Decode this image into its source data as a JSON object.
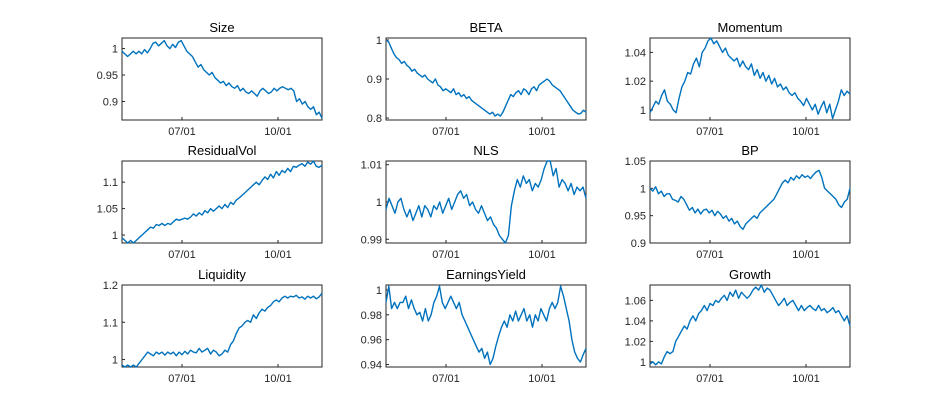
{
  "figure": {
    "line_color": "#0072BD",
    "axis_color": "#262626"
  },
  "chart_data": [
    {
      "type": "line",
      "title": "Size",
      "xlabel": "",
      "ylabel": "",
      "x_tick_labels": [
        "07/01",
        "10/01"
      ],
      "y_ticks": [
        0.9,
        0.95,
        1
      ],
      "y_tick_labels": [
        "0.9",
        "0.95",
        "1"
      ],
      "ylim": [
        0.865,
        1.02
      ],
      "grid": false,
      "series": [
        {
          "values": [
            0.995,
            0.99,
            0.985,
            0.99,
            0.995,
            0.99,
            0.995,
            0.99,
            0.998,
            0.992,
            1.0,
            1.01,
            1.012,
            1.005,
            1.01,
            1.015,
            1.005,
            1.0,
            1.008,
            1.002,
            1.012,
            1.015,
            1.005,
            0.995,
            0.99,
            0.985,
            0.975,
            0.965,
            0.97,
            0.96,
            0.955,
            0.95,
            0.955,
            0.945,
            0.94,
            0.935,
            0.938,
            0.93,
            0.935,
            0.928,
            0.925,
            0.93,
            0.92,
            0.925,
            0.918,
            0.915,
            0.92,
            0.915,
            0.91,
            0.92,
            0.925,
            0.92,
            0.915,
            0.918,
            0.925,
            0.92,
            0.925,
            0.928,
            0.925,
            0.922,
            0.925,
            0.92,
            0.9,
            0.905,
            0.895,
            0.9,
            0.89,
            0.885,
            0.89,
            0.875,
            0.88,
            0.868
          ]
        }
      ]
    },
    {
      "type": "line",
      "title": "BETA",
      "xlabel": "",
      "ylabel": "",
      "x_tick_labels": [
        "07/01",
        "10/01"
      ],
      "y_ticks": [
        0.8,
        0.9,
        1
      ],
      "y_tick_labels": [
        "0.8",
        "0.9",
        "1"
      ],
      "ylim": [
        0.795,
        1.005
      ],
      "grid": false,
      "series": [
        {
          "values": [
            1.0,
            0.995,
            0.98,
            0.965,
            0.955,
            0.95,
            0.94,
            0.945,
            0.935,
            0.93,
            0.92,
            0.925,
            0.915,
            0.91,
            0.905,
            0.91,
            0.9,
            0.895,
            0.89,
            0.9,
            0.885,
            0.88,
            0.87,
            0.875,
            0.87,
            0.865,
            0.875,
            0.86,
            0.865,
            0.855,
            0.86,
            0.85,
            0.855,
            0.845,
            0.84,
            0.835,
            0.83,
            0.825,
            0.82,
            0.815,
            0.81,
            0.815,
            0.805,
            0.81,
            0.805,
            0.815,
            0.83,
            0.845,
            0.86,
            0.855,
            0.865,
            0.87,
            0.86,
            0.875,
            0.87,
            0.86,
            0.875,
            0.88,
            0.87,
            0.885,
            0.89,
            0.895,
            0.9,
            0.895,
            0.885,
            0.88,
            0.875,
            0.87,
            0.86,
            0.85,
            0.84,
            0.83,
            0.82,
            0.815,
            0.81,
            0.812,
            0.82,
            0.815
          ]
        }
      ]
    },
    {
      "type": "line",
      "title": "Momentum",
      "xlabel": "",
      "ylabel": "",
      "x_tick_labels": [
        "07/01",
        "10/01"
      ],
      "y_ticks": [
        1,
        1.02,
        1.04
      ],
      "y_tick_labels": [
        "1",
        "1.02",
        "1.04"
      ],
      "ylim": [
        0.993,
        1.05
      ],
      "grid": false,
      "series": [
        {
          "values": [
            0.998,
            1.002,
            1.006,
            1.004,
            1.01,
            1.014,
            1.006,
            1.004,
            1.0,
            0.998,
            1.008,
            1.016,
            1.02,
            1.026,
            1.025,
            1.032,
            1.036,
            1.03,
            1.04,
            1.043,
            1.048,
            1.05,
            1.046,
            1.048,
            1.044,
            1.04,
            1.043,
            1.038,
            1.036,
            1.034,
            1.036,
            1.03,
            1.034,
            1.03,
            1.028,
            1.032,
            1.024,
            1.028,
            1.022,
            1.026,
            1.02,
            1.024,
            1.018,
            1.022,
            1.016,
            1.018,
            1.014,
            1.016,
            1.012,
            1.01,
            1.012,
            1.008,
            1.006,
            1.003,
            1.008,
            1.004,
            1.0,
            1.004,
            0.997,
            1.002,
            1.006,
            0.998,
            1.004,
            0.994,
            1.0,
            1.006,
            1.014,
            1.01,
            1.013,
            1.011
          ]
        }
      ]
    },
    {
      "type": "line",
      "title": "ResidualVol",
      "xlabel": "",
      "ylabel": "",
      "x_tick_labels": [
        "07/01",
        "10/01"
      ],
      "y_ticks": [
        1,
        1.05,
        1.1
      ],
      "y_tick_labels": [
        "1",
        "1.05",
        "1.1"
      ],
      "ylim": [
        0.985,
        1.14
      ],
      "grid": false,
      "series": [
        {
          "values": [
            0.995,
            0.99,
            0.985,
            0.99,
            0.985,
            0.99,
            0.995,
            1.0,
            1.005,
            1.01,
            1.015,
            1.013,
            1.02,
            1.018,
            1.022,
            1.018,
            1.022,
            1.02,
            1.025,
            1.03,
            1.028,
            1.03,
            1.032,
            1.03,
            1.034,
            1.04,
            1.036,
            1.042,
            1.038,
            1.046,
            1.042,
            1.05,
            1.045,
            1.05,
            1.055,
            1.05,
            1.058,
            1.052,
            1.062,
            1.058,
            1.066,
            1.07,
            1.075,
            1.08,
            1.085,
            1.09,
            1.095,
            1.1,
            1.095,
            1.103,
            1.11,
            1.105,
            1.115,
            1.108,
            1.12,
            1.113,
            1.122,
            1.118,
            1.126,
            1.12,
            1.13,
            1.128,
            1.132,
            1.135,
            1.13,
            1.138,
            1.134,
            1.14,
            1.13,
            1.128,
            1.132
          ]
        }
      ]
    },
    {
      "type": "line",
      "title": "NLS",
      "xlabel": "",
      "ylabel": "",
      "x_tick_labels": [
        "07/01",
        "10/01"
      ],
      "y_ticks": [
        0.99,
        1,
        1.01
      ],
      "y_tick_labels": [
        "0.99",
        "1",
        "1.01"
      ],
      "ylim": [
        0.989,
        1.011
      ],
      "grid": false,
      "series": [
        {
          "values": [
            0.998,
            1.001,
            0.999,
            0.997,
            1.0,
            1.001,
            0.998,
            0.996,
            0.998,
            0.995,
            0.997,
            0.999,
            0.996,
            0.999,
            0.998,
            0.996,
            0.999,
            0.998,
            1.0,
            0.997,
            0.999,
            1.001,
            0.998,
            1.0,
            1.002,
            1.003,
            1.001,
            1.002,
            0.999,
            1.0,
            0.998,
            0.997,
            0.999,
            0.997,
            0.995,
            0.996,
            0.994,
            0.993,
            0.991,
            0.99,
            0.989,
            0.991,
            0.999,
            1.003,
            1.006,
            1.004,
            1.007,
            1.005,
            1.006,
            1.003,
            1.005,
            1.004,
            1.006,
            1.009,
            1.011,
            1.011,
            1.007,
            1.009,
            1.004,
            1.006,
            1.005,
            1.003,
            1.005,
            1.002,
            1.004,
            1.003,
            1.004,
            1.001
          ]
        }
      ]
    },
    {
      "type": "line",
      "title": "BP",
      "xlabel": "",
      "ylabel": "",
      "x_tick_labels": [
        "07/01",
        "10/01"
      ],
      "y_ticks": [
        0.9,
        0.95,
        1,
        1.05
      ],
      "y_tick_labels": [
        "0.9",
        "0.95",
        "1",
        "1.05"
      ],
      "ylim": [
        0.9,
        1.05
      ],
      "grid": false,
      "series": [
        {
          "values": [
            1.0,
            0.995,
            1.003,
            0.99,
            0.995,
            0.985,
            0.99,
            0.99,
            0.98,
            0.978,
            0.975,
            0.985,
            0.98,
            0.97,
            0.96,
            0.965,
            0.955,
            0.962,
            0.953,
            0.96,
            0.962,
            0.955,
            0.96,
            0.95,
            0.958,
            0.953,
            0.945,
            0.95,
            0.94,
            0.945,
            0.935,
            0.94,
            0.93,
            0.925,
            0.935,
            0.94,
            0.945,
            0.95,
            0.945,
            0.955,
            0.96,
            0.965,
            0.97,
            0.975,
            0.98,
            0.99,
            1.0,
            1.01,
            1.015,
            1.01,
            1.02,
            1.015,
            1.023,
            1.018,
            1.025,
            1.02,
            1.023,
            1.018,
            1.025,
            1.03,
            1.033,
            1.02,
            1.0,
            0.995,
            0.99,
            0.985,
            0.98,
            0.97,
            0.965,
            0.975,
            0.98,
            1.0
          ]
        }
      ]
    },
    {
      "type": "line",
      "title": "Liquidity",
      "xlabel": "",
      "ylabel": "",
      "x_tick_labels": [
        "07/01",
        "10/01"
      ],
      "y_ticks": [
        1,
        1.1,
        1.2
      ],
      "y_tick_labels": [
        "1",
        "1.1",
        "1.2"
      ],
      "ylim": [
        0.98,
        1.2
      ],
      "grid": false,
      "series": [
        {
          "values": [
            0.985,
            0.98,
            0.985,
            0.98,
            0.985,
            0.98,
            0.99,
            1.0,
            1.01,
            1.02,
            1.015,
            1.01,
            1.02,
            1.015,
            1.02,
            1.012,
            1.02,
            1.015,
            1.02,
            1.01,
            1.02,
            1.013,
            1.022,
            1.015,
            1.025,
            1.02,
            1.018,
            1.03,
            1.02,
            1.025,
            1.03,
            1.015,
            1.025,
            1.02,
            1.01,
            1.015,
            1.025,
            1.02,
            1.04,
            1.05,
            1.07,
            1.085,
            1.09,
            1.1,
            1.105,
            1.1,
            1.12,
            1.11,
            1.125,
            1.135,
            1.13,
            1.14,
            1.145,
            1.155,
            1.16,
            1.155,
            1.165,
            1.17,
            1.165,
            1.17,
            1.168,
            1.172,
            1.165,
            1.168,
            1.162,
            1.17,
            1.165,
            1.17,
            1.163,
            1.168,
            1.178
          ]
        }
      ]
    },
    {
      "type": "line",
      "title": "EarningsYield",
      "xlabel": "",
      "ylabel": "",
      "x_tick_labels": [
        "07/01",
        "10/01"
      ],
      "y_ticks": [
        0.94,
        0.96,
        0.98,
        1
      ],
      "y_tick_labels": [
        "0.94",
        "0.96",
        "0.98",
        "1"
      ],
      "ylim": [
        0.938,
        1.004
      ],
      "grid": false,
      "series": [
        {
          "values": [
            0.99,
            1.003,
            0.985,
            0.99,
            0.985,
            0.99,
            0.99,
            0.995,
            0.985,
            0.992,
            0.985,
            0.98,
            0.982,
            0.975,
            0.985,
            0.975,
            0.98,
            0.99,
            0.995,
            1.003,
            0.99,
            0.985,
            0.99,
            0.995,
            0.99,
            0.985,
            0.99,
            0.98,
            0.975,
            0.97,
            0.965,
            0.96,
            0.955,
            0.95,
            0.953,
            0.945,
            0.95,
            0.94,
            0.945,
            0.955,
            0.963,
            0.97,
            0.975,
            0.97,
            0.98,
            0.975,
            0.983,
            0.975,
            0.98,
            0.985,
            0.975,
            0.98,
            0.97,
            0.98,
            0.975,
            0.985,
            0.98,
            0.975,
            0.985,
            0.99,
            0.985,
            0.99,
            1.003,
            0.995,
            0.985,
            0.975,
            0.96,
            0.95,
            0.945,
            0.942,
            0.948,
            0.953
          ]
        }
      ]
    },
    {
      "type": "line",
      "title": "Growth",
      "xlabel": "",
      "ylabel": "",
      "x_tick_labels": [
        "07/01",
        "10/01"
      ],
      "y_ticks": [
        1,
        1.02,
        1.04,
        1.06
      ],
      "y_tick_labels": [
        "1",
        "1.02",
        "1.04",
        "1.06"
      ],
      "ylim": [
        0.995,
        1.075
      ],
      "grid": false,
      "series": [
        {
          "values": [
            0.998,
            1.0,
            0.997,
            1.0,
            0.998,
            1.005,
            1.01,
            1.008,
            1.01,
            1.02,
            1.025,
            1.03,
            1.035,
            1.032,
            1.04,
            1.045,
            1.04,
            1.047,
            1.05,
            1.055,
            1.05,
            1.057,
            1.055,
            1.06,
            1.058,
            1.062,
            1.065,
            1.06,
            1.068,
            1.064,
            1.07,
            1.062,
            1.068,
            1.065,
            1.062,
            1.065,
            1.07,
            1.073,
            1.07,
            1.075,
            1.068,
            1.072,
            1.07,
            1.065,
            1.06,
            1.055,
            1.058,
            1.062,
            1.055,
            1.058,
            1.06,
            1.055,
            1.05,
            1.055,
            1.05,
            1.053,
            1.055,
            1.052,
            1.05,
            1.055,
            1.05,
            1.052,
            1.048,
            1.05,
            1.053,
            1.048,
            1.05,
            1.045,
            1.04,
            1.045,
            1.035
          ]
        }
      ]
    }
  ]
}
